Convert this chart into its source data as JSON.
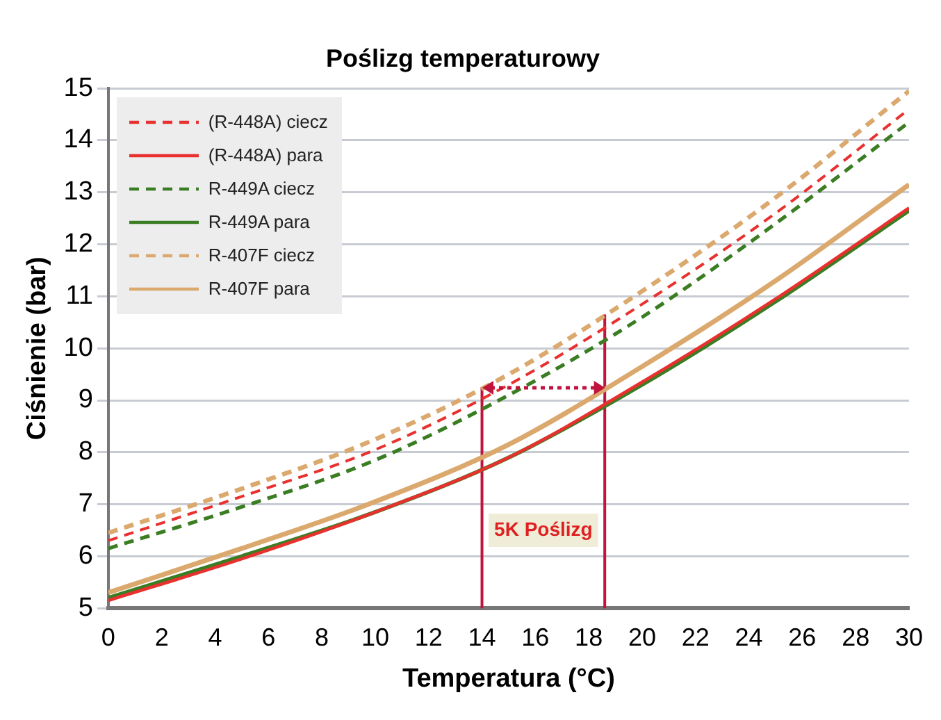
{
  "chart_data": {
    "type": "line",
    "title": "Poślizg temperaturowy",
    "xlabel": "Temperatura (°C)",
    "ylabel": "Ciśnienie (bar)",
    "x": [
      0,
      5,
      10,
      15,
      20,
      25,
      30
    ],
    "series": [
      {
        "name": "(R-448A) ciecz",
        "color": "#e8312f",
        "line_style": "dashed",
        "values": [
          6.3,
          7.15,
          8.05,
          9.3,
          10.85,
          12.6,
          14.6
        ]
      },
      {
        "name": "(R-448A) para",
        "color": "#e8312f",
        "line_style": "solid",
        "values": [
          5.15,
          5.95,
          6.85,
          7.9,
          9.35,
          10.95,
          12.7
        ]
      },
      {
        "name": "R-449A ciecz",
        "color": "#3a7d22",
        "line_style": "dashed",
        "values": [
          6.15,
          6.95,
          7.85,
          9.1,
          10.6,
          12.4,
          14.35
        ]
      },
      {
        "name": "R-449A para",
        "color": "#3a7d22",
        "line_style": "solid",
        "values": [
          5.2,
          6.0,
          6.85,
          7.9,
          9.3,
          10.9,
          12.65
        ]
      },
      {
        "name": "R-407F ciecz",
        "color": "#dba96e",
        "line_style": "dashed",
        "values": [
          6.45,
          7.3,
          8.25,
          9.5,
          11.1,
          12.9,
          14.95
        ]
      },
      {
        "name": "R-407F para",
        "color": "#dba96e",
        "line_style": "solid",
        "values": [
          5.3,
          6.15,
          7.05,
          8.15,
          9.65,
          11.3,
          13.15
        ]
      }
    ],
    "xlim": [
      0,
      30
    ],
    "xticks": [
      0,
      2,
      4,
      6,
      8,
      10,
      12,
      14,
      16,
      18,
      20,
      22,
      24,
      26,
      28,
      30
    ],
    "ylim": [
      5,
      15
    ],
    "yticks": [
      5,
      6,
      7,
      8,
      9,
      10,
      11,
      12,
      13,
      14,
      15
    ],
    "ref_lines": [
      {
        "axis": "x",
        "value": 14,
        "color": "#c0143c"
      },
      {
        "axis": "x",
        "value": 18.6,
        "color": "#c0143c"
      }
    ],
    "annotations": [
      "5K Poślizg"
    ],
    "grid": "y",
    "legend": "top left",
    "marker": "none"
  }
}
